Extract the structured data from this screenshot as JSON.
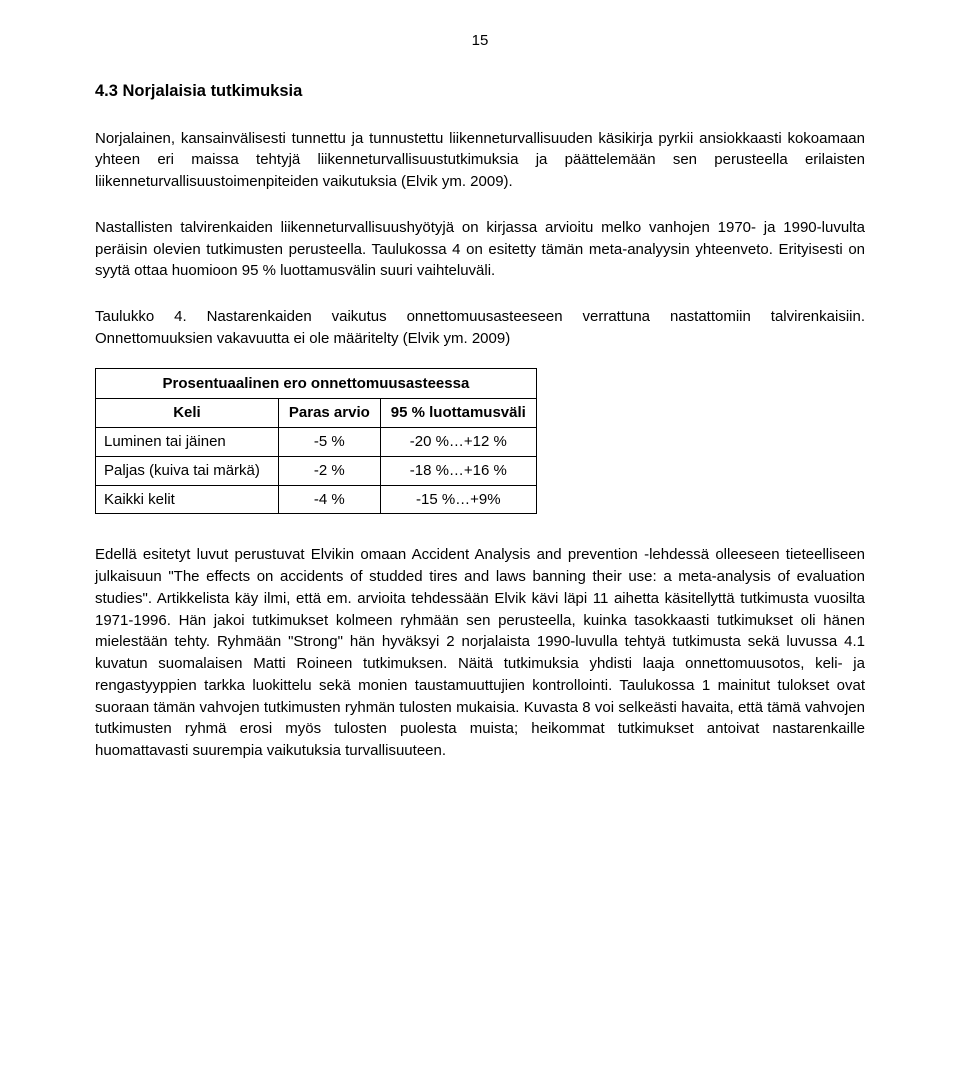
{
  "page_number": "15",
  "heading": "4.3 Norjalaisia tutkimuksia",
  "para1": "Norjalainen, kansainvälisesti tunnettu ja tunnustettu liikenneturvallisuuden käsikirja pyrkii ansiokkaasti kokoamaan yhteen eri maissa tehtyjä liikenneturvallisuustutkimuksia ja päättelemään sen perusteella erilaisten liikenneturvallisuustoimenpiteiden vaikutuksia (Elvik ym. 2009).",
  "para2": "Nastallisten talvirenkaiden liikenneturvallisuushyötyjä on kirjassa arvioitu melko vanhojen 1970- ja 1990-luvulta peräisin olevien tutkimusten perusteella. Taulukossa 4 on esitetty tämän meta-analyysin yhteenveto. Erityisesti on syytä ottaa huomioon 95 % luottamusvälin suuri vaihteluväli.",
  "table_caption": "Taulukko 4. Nastarenkaiden vaikutus onnettomuusasteeseen verrattuna nastattomiin talvirenkaisiin. Onnettomuuksien vakavuutta ei ole määritelty (Elvik ym. 2009)",
  "table": {
    "title": "Prosentuaalinen ero onnettomuusasteessa",
    "columns": [
      "Keli",
      "Paras arvio",
      "95 % luottamusväli"
    ],
    "rows": [
      [
        "Luminen tai jäinen",
        "-5 %",
        "-20 %…+12 %"
      ],
      [
        "Paljas (kuiva tai märkä)",
        "-2 %",
        "-18 %…+16 %"
      ],
      [
        "Kaikki kelit",
        "-4 %",
        "-15 %…+9%"
      ]
    ]
  },
  "para3": "Edellä esitetyt luvut perustuvat Elvikin omaan Accident Analysis and prevention -lehdessä olleeseen tieteelliseen julkaisuun \"The effects on accidents of studded tires and laws banning their use: a meta-analysis of evaluation studies\". Artikkelista käy ilmi, että em. arvioita tehdessään Elvik kävi läpi 11 aihetta käsitellyttä tutkimusta vuosilta 1971-1996. Hän jakoi tutkimukset kolmeen ryhmään sen perusteella, kuinka tasokkaasti tutkimukset oli hänen mielestään tehty. Ryhmään \"Strong\" hän hyväksyi 2 norjalaista 1990-luvulla tehtyä tutkimusta sekä luvussa 4.1 kuvatun suomalaisen Matti Roineen tutkimuksen. Näitä tutkimuksia yhdisti laaja onnettomuusotos, keli- ja rengastyyppien tarkka luokittelu sekä monien taustamuuttujien kontrollointi. Taulukossa 1 mainitut tulokset ovat suoraan tämän vahvojen tutkimusten ryhmän tulosten mukaisia. Kuvasta 8 voi selkeästi havaita, että tämä vahvojen tutkimusten ryhmä erosi myös tulosten puolesta muista; heikommat tutkimukset antoivat nastarenkaille huomattavasti suurempia vaikutuksia turvallisuuteen."
}
